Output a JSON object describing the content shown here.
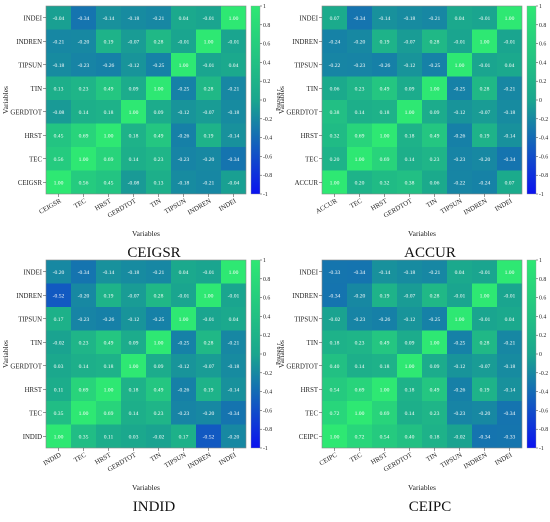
{
  "figure": {
    "colorbar_ticks": [
      "1",
      "0.8",
      "0.6",
      "0.4",
      "0.2",
      "0",
      "-0.2",
      "-0.4",
      "-0.6",
      "-0.8",
      "-1"
    ],
    "colorbar_label": "Pearson r",
    "colors": {
      "high": "#2ee873",
      "mid": "#1aa68e",
      "low": "#0b12f0",
      "cell_text": "#ffffff",
      "border": "#888888"
    }
  },
  "chart_data": [
    {
      "type": "heatmap",
      "title": "CEIGSR",
      "xlabel": "Variables",
      "ylabel": "Variables",
      "colorbar_label": "Pearson r",
      "vrange": [
        -1,
        1
      ],
      "x": [
        "CEIGSR",
        "TEC",
        "HRST",
        "GERDTOT",
        "TIN",
        "TIPSUN",
        "INDREN",
        "INDEI"
      ],
      "y": [
        "INDEI",
        "INDREN",
        "TIPSUN",
        "TIN",
        "GERDTOT",
        "HRST",
        "TEC",
        "CEIGSR"
      ],
      "values": [
        [
          "-0.04",
          "-0.34",
          "-0.14",
          "-0.18",
          "-0.21",
          "0.04",
          "-0.01",
          "1.00"
        ],
        [
          "-0.21",
          "-0.20",
          "0.19",
          "-0.07",
          "0.28",
          "-0.01",
          "1.00",
          "-0.01"
        ],
        [
          "-0.18",
          "-0.23",
          "-0.26",
          "-0.12",
          "-0.25",
          "1.00",
          "-0.01",
          "0.04"
        ],
        [
          "0.13",
          "0.23",
          "0.49",
          "0.09",
          "1.00",
          "-0.25",
          "0.28",
          "-0.21"
        ],
        [
          "-0.08",
          "0.14",
          "0.18",
          "1.00",
          "0.09",
          "-0.12",
          "-0.07",
          "-0.18"
        ],
        [
          "0.45",
          "0.69",
          "1.00",
          "0.18",
          "0.49",
          "-0.26",
          "0.19",
          "-0.14"
        ],
        [
          "0.56",
          "1.00",
          "0.69",
          "0.14",
          "0.23",
          "-0.23",
          "-0.20",
          "-0.34"
        ],
        [
          "1.00",
          "0.56",
          "0.45",
          "-0.08",
          "0.13",
          "-0.18",
          "-0.21",
          "-0.04"
        ]
      ]
    },
    {
      "type": "heatmap",
      "title": "ACCUR",
      "xlabel": "Variables",
      "ylabel": "Variables",
      "colorbar_label": "Pearson r",
      "vrange": [
        -1,
        1
      ],
      "x": [
        "ACCUR",
        "TEC",
        "HRST",
        "GERDTOT",
        "TIN",
        "TIPSUN",
        "INDREN",
        "INDEI"
      ],
      "y": [
        "INDEI",
        "INDREN",
        "TIPSUN",
        "TIN",
        "GERDTOT",
        "HRST",
        "TEC",
        "ACCUR"
      ],
      "values": [
        [
          "0.07",
          "-0.34",
          "-0.14",
          "-0.18",
          "-0.21",
          "0.04",
          "-0.01",
          "1.00"
        ],
        [
          "-0.24",
          "-0.20",
          "0.19",
          "-0.07",
          "0.28",
          "-0.01",
          "1.00",
          "-0.01"
        ],
        [
          "-0.22",
          "-0.23",
          "-0.26",
          "-0.12",
          "-0.25",
          "1.00",
          "-0.01",
          "0.04"
        ],
        [
          "0.06",
          "0.23",
          "0.49",
          "0.09",
          "1.00",
          "-0.25",
          "0.28",
          "-0.21"
        ],
        [
          "0.38",
          "0.14",
          "0.18",
          "1.00",
          "0.09",
          "-0.12",
          "-0.07",
          "-0.18"
        ],
        [
          "0.32",
          "0.69",
          "1.00",
          "0.18",
          "0.49",
          "-0.26",
          "0.19",
          "-0.14"
        ],
        [
          "0.20",
          "1.00",
          "0.69",
          "0.14",
          "0.23",
          "-0.23",
          "-0.20",
          "-0.34"
        ],
        [
          "1.00",
          "0.20",
          "0.32",
          "0.38",
          "0.06",
          "-0.22",
          "-0.24",
          "0.07"
        ]
      ]
    },
    {
      "type": "heatmap",
      "title": "INDID",
      "xlabel": "Variables",
      "ylabel": "Variables",
      "colorbar_label": "Pearson r",
      "vrange": [
        -1,
        1
      ],
      "x": [
        "INDID",
        "TEC",
        "HRST",
        "GERDTOT",
        "TIN",
        "TIPSUN",
        "INDREN",
        "INDEI"
      ],
      "y": [
        "INDEI",
        "INDREN",
        "TIPSUN",
        "TIN",
        "GERDTOT",
        "HRST",
        "TEC",
        "INDID"
      ],
      "values": [
        [
          "-0.20",
          "-0.34",
          "-0.14",
          "-0.18",
          "-0.21",
          "0.04",
          "-0.01",
          "1.00"
        ],
        [
          "-0.52",
          "-0.20",
          "0.19",
          "-0.07",
          "0.28",
          "-0.01",
          "1.00",
          "-0.01"
        ],
        [
          "0.17",
          "-0.23",
          "-0.26",
          "-0.12",
          "-0.25",
          "1.00",
          "-0.01",
          "0.04"
        ],
        [
          "-0.02",
          "0.23",
          "0.49",
          "0.09",
          "1.00",
          "-0.25",
          "0.28",
          "-0.21"
        ],
        [
          "0.03",
          "0.14",
          "0.18",
          "1.00",
          "0.09",
          "-0.12",
          "-0.07",
          "-0.18"
        ],
        [
          "0.11",
          "0.69",
          "1.00",
          "0.18",
          "0.49",
          "-0.26",
          "0.19",
          "-0.14"
        ],
        [
          "0.35",
          "1.00",
          "0.69",
          "0.14",
          "0.23",
          "-0.23",
          "-0.20",
          "-0.34"
        ],
        [
          "1.00",
          "0.35",
          "0.11",
          "0.03",
          "-0.02",
          "0.17",
          "-0.52",
          "-0.20"
        ]
      ]
    },
    {
      "type": "heatmap",
      "title": "CEIPC",
      "xlabel": "Variables",
      "ylabel": "Variables",
      "colorbar_label": "Pearson r",
      "vrange": [
        -1,
        1
      ],
      "x": [
        "CEIPC",
        "TEC",
        "HRST",
        "GERDTOT",
        "TIN",
        "TIPSUN",
        "INDREN",
        "INDEI"
      ],
      "y": [
        "INDEI",
        "INDREN",
        "TIPSUN",
        "TIN",
        "GERDTOT",
        "HRST",
        "TEC",
        "CEIPC"
      ],
      "values": [
        [
          "-0.33",
          "-0.34",
          "-0.14",
          "-0.18",
          "-0.21",
          "0.04",
          "-0.01",
          "1.00"
        ],
        [
          "-0.34",
          "-0.20",
          "0.19",
          "-0.07",
          "0.28",
          "-0.01",
          "1.00",
          "-0.01"
        ],
        [
          "-0.02",
          "-0.23",
          "-0.26",
          "-0.12",
          "-0.25",
          "1.00",
          "-0.01",
          "0.04"
        ],
        [
          "0.18",
          "0.23",
          "0.49",
          "0.09",
          "1.00",
          "-0.25",
          "0.28",
          "-0.21"
        ],
        [
          "0.40",
          "0.14",
          "0.18",
          "1.00",
          "0.09",
          "-0.12",
          "-0.07",
          "-0.18"
        ],
        [
          "0.54",
          "0.69",
          "1.00",
          "0.18",
          "0.49",
          "-0.26",
          "0.19",
          "-0.14"
        ],
        [
          "0.72",
          "1.00",
          "0.69",
          "0.14",
          "0.23",
          "-0.23",
          "-0.20",
          "-0.34"
        ],
        [
          "1.00",
          "0.72",
          "0.54",
          "0.40",
          "0.18",
          "-0.02",
          "-0.34",
          "-0.33"
        ]
      ]
    }
  ]
}
